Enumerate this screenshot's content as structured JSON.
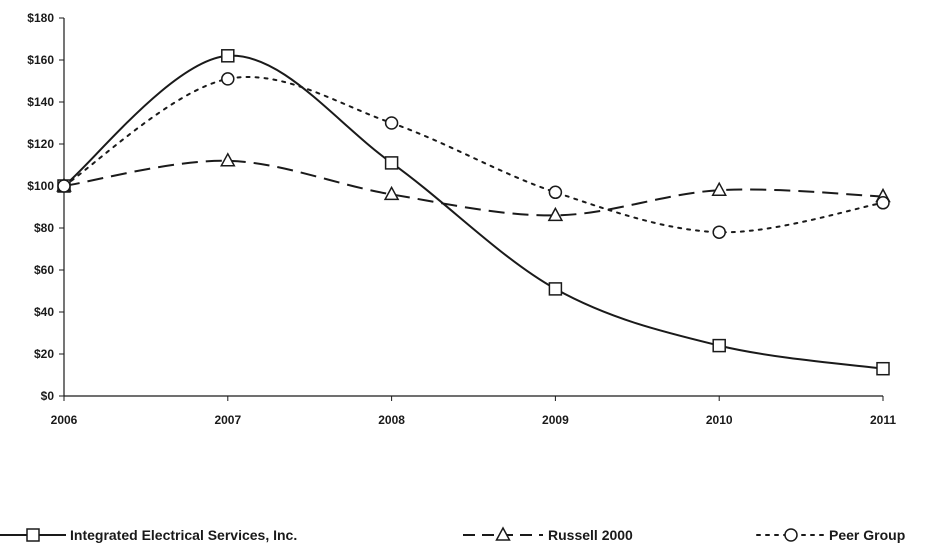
{
  "chart_data": {
    "type": "line",
    "title": "",
    "xlabel": "",
    "ylabel": "",
    "x": [
      "2006",
      "2007",
      "2008",
      "2009",
      "2010",
      "2011"
    ],
    "ylim": [
      0,
      180
    ],
    "yticks": [
      0,
      20,
      40,
      60,
      80,
      100,
      120,
      140,
      160,
      180
    ],
    "ytick_labels": [
      "$0",
      "$20",
      "$40",
      "$60",
      "$80",
      "$100",
      "$120",
      "$140",
      "$160",
      "$180"
    ],
    "grid": false,
    "legend_position": "bottom",
    "series": [
      {
        "name": "Integrated Electrical Services, Inc.",
        "values": [
          100,
          162,
          111,
          51,
          24,
          13
        ],
        "line_style": "solid",
        "marker": "square",
        "color": "#1a1a1a"
      },
      {
        "name": "Russell 2000",
        "values": [
          100,
          112,
          96,
          86,
          98,
          95
        ],
        "line_style": "dashed",
        "marker": "triangle",
        "color": "#1a1a1a"
      },
      {
        "name": "Peer Group",
        "values": [
          100,
          151,
          130,
          97,
          78,
          92
        ],
        "line_style": "dotted",
        "marker": "circle",
        "color": "#1a1a1a"
      }
    ]
  }
}
